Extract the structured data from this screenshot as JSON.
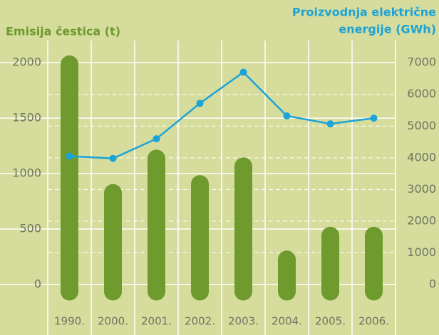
{
  "chart_data": {
    "type": "bar_line",
    "ylabel": "Emisija čestica (t)",
    "y2label": [
      "Proizvodnja električne",
      "energije (GWh)"
    ],
    "categories": [
      "1990.",
      "2000.",
      "2001.",
      "2002.",
      "2003.",
      "2004.",
      "2005.",
      "2006."
    ],
    "series": [
      {
        "name": "Emisija čestica",
        "type": "bar",
        "color": "#6e9a2e",
        "values": [
          2050,
          890,
          1200,
          970,
          1130,
          290,
          505,
          505
        ]
      },
      {
        "name": "Proizvodnja električne energije",
        "type": "line",
        "axis": "y2",
        "color": "#1ca3d8",
        "values": [
          4050,
          3980,
          4600,
          5720,
          6700,
          5320,
          5070,
          5250
        ]
      }
    ],
    "ylim": [
      0,
      2200
    ],
    "yticks": [
      0,
      500,
      1000,
      1500,
      2000
    ],
    "y2lim": [
      0,
      7700
    ],
    "y2ticks": [
      0,
      1000,
      2000,
      3000,
      4000,
      5000,
      6000,
      7000
    ],
    "grid": true
  }
}
